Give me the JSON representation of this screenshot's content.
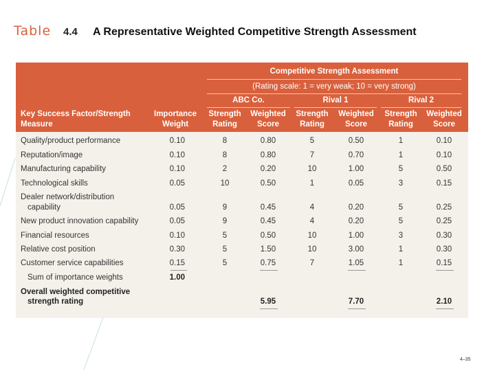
{
  "title": {
    "table_word": "Table",
    "number": "4.4",
    "text": "A Representative Weighted Competitive Strength Assessment"
  },
  "header": {
    "group_title": "Competitive Strength Assessment",
    "rating_scale": "(Rating scale: 1 = very weak; 10 = very strong)",
    "factor_line1": "Key Success Factor/Strength",
    "factor_line2": "Measure",
    "importance_line1": "Importance",
    "importance_line2": "Weight",
    "companies": [
      "ABC Co.",
      "Rival 1",
      "Rival 2"
    ],
    "strength_line1": "Strength",
    "strength_line2": "Rating",
    "weighted_line1": "Weighted",
    "weighted_line2": "Score"
  },
  "rows": [
    {
      "factor": "Quality/product performance",
      "weight": "0.10",
      "cells": [
        "8",
        "0.80",
        "5",
        "0.50",
        "1",
        "0.10"
      ]
    },
    {
      "factor": "Reputation/image",
      "weight": "0.10",
      "cells": [
        "8",
        "0.80",
        "7",
        "0.70",
        "1",
        "0.10"
      ]
    },
    {
      "factor": "Manufacturing capability",
      "weight": "0.10",
      "cells": [
        "2",
        "0.20",
        "10",
        "1.00",
        "5",
        "0.50"
      ]
    },
    {
      "factor": "Technological skills",
      "weight": "0.05",
      "cells": [
        "10",
        "0.50",
        "1",
        "0.05",
        "3",
        "0.15"
      ]
    },
    {
      "factor_line1": "Dealer network/distribution",
      "factor_line2": "capability",
      "weight": "0.05",
      "cells": [
        "9",
        "0.45",
        "4",
        "0.20",
        "5",
        "0.25"
      ]
    },
    {
      "factor": "New product innovation capability",
      "weight": "0.05",
      "cells": [
        "9",
        "0.45",
        "4",
        "0.20",
        "5",
        "0.25"
      ]
    },
    {
      "factor": "Financial resources",
      "weight": "0.10",
      "cells": [
        "5",
        "0.50",
        "10",
        "1.00",
        "3",
        "0.30"
      ]
    },
    {
      "factor": "Relative cost position",
      "weight": "0.30",
      "cells": [
        "5",
        "1.50",
        "10",
        "3.00",
        "1",
        "0.30"
      ]
    },
    {
      "factor": "Customer service capabilities",
      "weight": "0.15",
      "cells": [
        "5",
        "0.75",
        "7",
        "1.05",
        "1",
        "0.15"
      ]
    }
  ],
  "sum_row": {
    "label": "Sum of importance weights",
    "value": "1.00"
  },
  "overall": {
    "label_line1": "Overall weighted competitive",
    "label_line2": "strength rating",
    "scores": [
      "5.95",
      "7.70",
      "2.10"
    ]
  },
  "footer": {
    "page": "4–35"
  },
  "colors": {
    "accent": "#d9603c",
    "table_bg": "#f3f1ea"
  }
}
